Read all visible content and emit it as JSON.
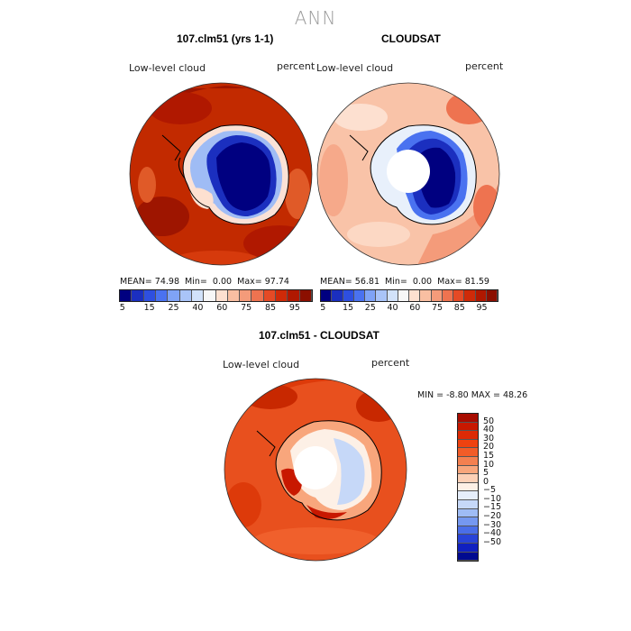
{
  "page": {
    "title": "ANN",
    "panels": [
      {
        "title": "107.clm51 (yrs 1-1)",
        "left_label": "Low-level cloud",
        "right_label": "percent",
        "stats": {
          "mean_label": "MEAN=",
          "mean": "74.98",
          "min_label": "Min=",
          "min": "0.00",
          "max_label": "Max=",
          "max": "97.74"
        }
      },
      {
        "title": "CLOUDSAT",
        "left_label": "Low-level cloud",
        "right_label": "percent",
        "stats": {
          "mean_label": "MEAN=",
          "mean": "56.81",
          "min_label": "Min=",
          "min": "0.00",
          "max_label": "Max=",
          "max": "81.59"
        }
      },
      {
        "title": "107.clm51 - CLOUDSAT",
        "left_label": "Low-level cloud",
        "right_label": "percent",
        "stats": {
          "min_label": "MIN =",
          "min": "-8.80",
          "max_label": "MAX =",
          "max": "48.26"
        }
      }
    ],
    "colorbar_top": {
      "ticks": [
        "5",
        "15",
        "25",
        "40",
        "60",
        "75",
        "85",
        "95"
      ],
      "colors": [
        "#000080",
        "#1b2fbf",
        "#2e4fe0",
        "#4a72f0",
        "#7fa3f6",
        "#a9c4f8",
        "#d2e2fa",
        "#f7f7f7",
        "#fde0d0",
        "#f9bfa2",
        "#f49b7a",
        "#ee7350",
        "#e54a25",
        "#cf2a08",
        "#b01800",
        "#8b0f00"
      ]
    },
    "colorbar_diff": {
      "ticks": [
        "50",
        "40",
        "30",
        "20",
        "15",
        "10",
        "5",
        "0",
        "−5",
        "−10",
        "−15",
        "−20",
        "−30",
        "−40",
        "−50"
      ],
      "colors": [
        "#a80c00",
        "#c81800",
        "#dd2a05",
        "#ee4210",
        "#f25c28",
        "#f48050",
        "#f8a67c",
        "#fcd0b6",
        "#fdf0e6",
        "#e6eefb",
        "#c6d8f8",
        "#9fbcf5",
        "#7598f0",
        "#4a6ee8",
        "#2843d8",
        "#1020c0",
        "#000a90"
      ]
    },
    "colors": {
      "title_gray": "#9a9a9a",
      "land_blue": "#0a0aa0",
      "ocean_red": "#c22a00",
      "ocean_light": "#f9c3a8"
    }
  }
}
